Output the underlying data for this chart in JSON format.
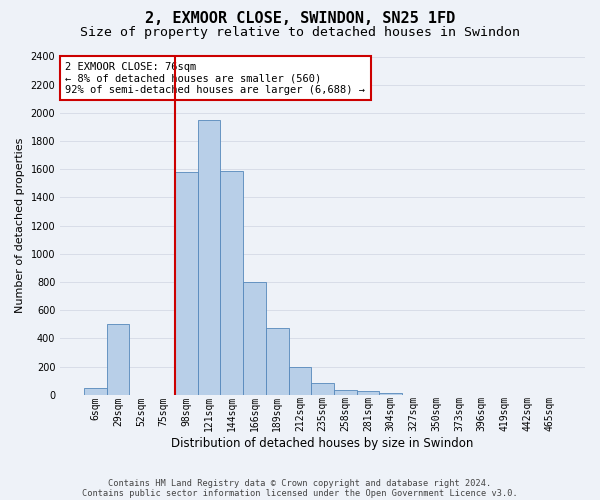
{
  "title": "2, EXMOOR CLOSE, SWINDON, SN25 1FD",
  "subtitle": "Size of property relative to detached houses in Swindon",
  "xlabel": "Distribution of detached houses by size in Swindon",
  "ylabel": "Number of detached properties",
  "bar_labels": [
    "6sqm",
    "29sqm",
    "52sqm",
    "75sqm",
    "98sqm",
    "121sqm",
    "144sqm",
    "166sqm",
    "189sqm",
    "212sqm",
    "235sqm",
    "258sqm",
    "281sqm",
    "304sqm",
    "327sqm",
    "350sqm",
    "373sqm",
    "396sqm",
    "419sqm",
    "442sqm",
    "465sqm"
  ],
  "bar_values": [
    50,
    500,
    0,
    0,
    1580,
    1950,
    1590,
    800,
    475,
    200,
    85,
    35,
    25,
    15,
    0,
    0,
    0,
    0,
    0,
    0,
    0
  ],
  "bar_color": "#b8cfe8",
  "bar_edgecolor": "#5588bb",
  "vline_index": 4,
  "vline_color": "#cc0000",
  "annotation_line1": "2 EXMOOR CLOSE: 76sqm",
  "annotation_line2": "← 8% of detached houses are smaller (560)",
  "annotation_line3": "92% of semi-detached houses are larger (6,688) →",
  "annotation_box_edgecolor": "#cc0000",
  "ylim": [
    0,
    2400
  ],
  "yticks": [
    0,
    200,
    400,
    600,
    800,
    1000,
    1200,
    1400,
    1600,
    1800,
    2000,
    2200,
    2400
  ],
  "bg_color": "#eef2f8",
  "grid_color": "#d8dde8",
  "title_fontsize": 11,
  "subtitle_fontsize": 9.5,
  "ylabel_fontsize": 8,
  "xlabel_fontsize": 8.5,
  "tick_fontsize": 7,
  "annot_fontsize": 7.5,
  "footer_fontsize": 6.2,
  "footer_line1": "Contains HM Land Registry data © Crown copyright and database right 2024.",
  "footer_line2": "Contains public sector information licensed under the Open Government Licence v3.0."
}
